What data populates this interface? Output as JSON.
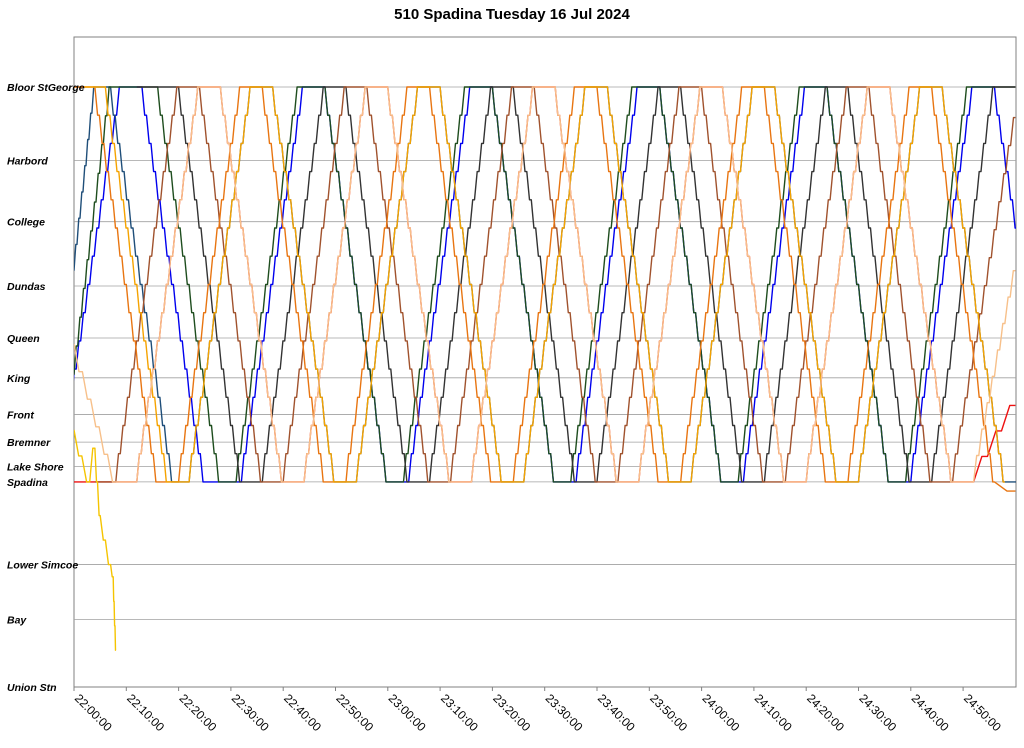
{
  "chart_data": {
    "type": "line",
    "title": "510 Spadina Tuesday 16 Jul 2024",
    "xlabel": "",
    "ylabel": "",
    "x_range": [
      "22:00:00",
      "25:00:00"
    ],
    "x_ticks": [
      "22:00:00",
      "22:10:00",
      "22:20:00",
      "22:30:00",
      "22:40:00",
      "22:50:00",
      "23:00:00",
      "23:10:00",
      "23:20:00",
      "23:30:00",
      "23:40:00",
      "23:50:00",
      "24:00:00",
      "24:10:00",
      "24:20:00",
      "24:30:00",
      "24:40:00",
      "24:50:00"
    ],
    "stops": [
      {
        "name": "Bloor StGeorge",
        "pos": 0.0
      },
      {
        "name": "Harbord",
        "pos": 1.2
      },
      {
        "name": "College",
        "pos": 2.2
      },
      {
        "name": "Dundas",
        "pos": 3.25
      },
      {
        "name": "Queen",
        "pos": 4.1
      },
      {
        "name": "King",
        "pos": 4.75
      },
      {
        "name": "Front",
        "pos": 5.35
      },
      {
        "name": "Bremner",
        "pos": 5.8
      },
      {
        "name": "Lake Shore",
        "pos": 6.2
      },
      {
        "name": "Spadina",
        "pos": 6.45
      },
      {
        "name": "Lower Simcoe",
        "pos": 7.8
      },
      {
        "name": "Bay",
        "pos": 8.7
      },
      {
        "name": "Union Stn",
        "pos": 9.8
      }
    ],
    "y_range": [
      -0.3,
      9.8
    ],
    "grid": true,
    "legend": "none",
    "series": [
      {
        "color": "#0000ee",
        "points": [
          [
            -1,
            6.45
          ],
          [
            -3,
            6.45
          ],
          [
            9,
            0
          ],
          [
            13,
            0
          ],
          [
            25,
            6.45
          ],
          [
            32,
            6.45
          ],
          [
            44,
            0
          ],
          [
            48,
            0
          ],
          [
            60,
            6.45
          ],
          [
            64,
            6.45
          ],
          [
            76,
            0
          ],
          [
            80,
            0
          ],
          [
            92,
            6.45
          ],
          [
            96,
            6.45
          ],
          [
            108,
            0
          ],
          [
            112,
            0
          ],
          [
            124,
            6.45
          ],
          [
            128,
            6.45
          ],
          [
            140,
            0
          ],
          [
            144,
            0
          ],
          [
            156,
            6.45
          ],
          [
            160,
            6.45
          ],
          [
            172,
            0
          ],
          [
            176,
            0
          ],
          [
            188,
            6.45
          ]
        ]
      },
      {
        "color": "#1f4e79",
        "points": [
          [
            0,
            3.0
          ],
          [
            4,
            0
          ],
          [
            7,
            0
          ],
          [
            19,
            6.45
          ],
          [
            22,
            6.45
          ],
          [
            34,
            0
          ],
          [
            38,
            0
          ],
          [
            50,
            6.45
          ],
          [
            54,
            6.45
          ],
          [
            66,
            0
          ],
          [
            70,
            0
          ],
          [
            82,
            6.45
          ],
          [
            86,
            6.45
          ],
          [
            98,
            0
          ],
          [
            102,
            0
          ],
          [
            114,
            6.45
          ],
          [
            118,
            6.45
          ],
          [
            130,
            0
          ],
          [
            134,
            0
          ],
          [
            146,
            6.45
          ],
          [
            150,
            6.45
          ],
          [
            162,
            0
          ],
          [
            166,
            0
          ],
          [
            178,
            6.45
          ],
          [
            182,
            6.45
          ],
          [
            185,
            3.2
          ]
        ]
      },
      {
        "color": "#1e4d1e",
        "points": [
          [
            0,
            4.7
          ],
          [
            7,
            0
          ],
          [
            16,
            0
          ],
          [
            28,
            6.45
          ],
          [
            31,
            6.45
          ],
          [
            43,
            0
          ],
          [
            48,
            0
          ],
          [
            60,
            6.45
          ],
          [
            63,
            6.45
          ],
          [
            75,
            0
          ],
          [
            80,
            0
          ],
          [
            92,
            6.45
          ],
          [
            95,
            6.45
          ],
          [
            107,
            0
          ],
          [
            112,
            0
          ],
          [
            124,
            6.45
          ],
          [
            127,
            6.45
          ],
          [
            139,
            0
          ],
          [
            144,
            0
          ],
          [
            156,
            6.45
          ],
          [
            159,
            6.45
          ],
          [
            171,
            0
          ],
          [
            180,
            0
          ]
        ]
      },
      {
        "color": "#333333",
        "points": [
          [
            12,
            0
          ],
          [
            20,
            0
          ],
          [
            32,
            6.45
          ],
          [
            36,
            6.45
          ],
          [
            48,
            0
          ],
          [
            52,
            0
          ],
          [
            64,
            6.45
          ],
          [
            68,
            6.45
          ],
          [
            80,
            0
          ],
          [
            84,
            0
          ],
          [
            96,
            6.45
          ],
          [
            100,
            6.45
          ],
          [
            112,
            0
          ],
          [
            116,
            0
          ],
          [
            128,
            6.45
          ],
          [
            132,
            6.45
          ],
          [
            144,
            0
          ],
          [
            148,
            0
          ],
          [
            160,
            6.45
          ],
          [
            164,
            6.45
          ],
          [
            176,
            0
          ],
          [
            180,
            0
          ]
        ]
      },
      {
        "color": "#ee1111",
        "points": [
          [
            0,
            6.45
          ],
          [
            12,
            6.45
          ],
          [
            24,
            0
          ],
          [
            28,
            0
          ],
          [
            40,
            6.45
          ],
          [
            44,
            6.45
          ],
          [
            56,
            0
          ],
          [
            60,
            0
          ],
          [
            72,
            6.45
          ],
          [
            76,
            6.45
          ],
          [
            88,
            0
          ],
          [
            92,
            0
          ],
          [
            104,
            6.45
          ],
          [
            108,
            6.45
          ],
          [
            120,
            0
          ],
          [
            124,
            0
          ],
          [
            136,
            6.45
          ],
          [
            140,
            6.45
          ],
          [
            152,
            0
          ],
          [
            156,
            0
          ],
          [
            168,
            6.45
          ],
          [
            172,
            6.45
          ],
          [
            180,
            5.2
          ]
        ]
      },
      {
        "color": "#a0522d",
        "points": [
          [
            4,
            6.45
          ],
          [
            8,
            6.45
          ],
          [
            20,
            0
          ],
          [
            24,
            0
          ],
          [
            36,
            6.45
          ],
          [
            40,
            6.45
          ],
          [
            52,
            0
          ],
          [
            56,
            0
          ],
          [
            68,
            6.45
          ],
          [
            72,
            6.45
          ],
          [
            84,
            0
          ],
          [
            88,
            0
          ],
          [
            100,
            6.45
          ],
          [
            104,
            6.45
          ],
          [
            116,
            0
          ],
          [
            120,
            0
          ],
          [
            132,
            6.45
          ],
          [
            136,
            6.45
          ],
          [
            148,
            0
          ],
          [
            152,
            0
          ],
          [
            164,
            6.45
          ],
          [
            168,
            6.45
          ],
          [
            180,
            0.5
          ]
        ]
      },
      {
        "color": "#e87511",
        "points": [
          [
            0,
            0
          ],
          [
            4,
            0
          ],
          [
            16,
            6.45
          ],
          [
            20,
            6.45
          ],
          [
            32,
            0
          ],
          [
            36,
            0
          ],
          [
            48,
            6.45
          ],
          [
            52,
            6.45
          ],
          [
            64,
            0
          ],
          [
            68,
            0
          ],
          [
            80,
            6.45
          ],
          [
            84,
            6.45
          ],
          [
            96,
            0
          ],
          [
            100,
            0
          ],
          [
            112,
            6.45
          ],
          [
            116,
            6.45
          ],
          [
            128,
            0
          ],
          [
            132,
            0
          ],
          [
            144,
            6.45
          ],
          [
            148,
            6.45
          ],
          [
            160,
            0
          ],
          [
            164,
            0
          ],
          [
            176,
            6.45
          ],
          [
            180,
            6.6
          ]
        ]
      },
      {
        "color": "#f5a300",
        "points": [
          [
            2,
            0
          ],
          [
            6,
            0
          ],
          [
            18,
            6.45
          ],
          [
            22,
            6.45
          ],
          [
            34,
            0
          ],
          [
            38,
            0
          ],
          [
            50,
            6.45
          ],
          [
            54,
            6.45
          ],
          [
            66,
            0
          ],
          [
            70,
            0
          ],
          [
            82,
            6.45
          ],
          [
            86,
            6.45
          ],
          [
            98,
            0
          ],
          [
            102,
            0
          ],
          [
            114,
            6.45
          ],
          [
            118,
            6.45
          ],
          [
            130,
            0
          ],
          [
            134,
            0
          ],
          [
            146,
            6.45
          ],
          [
            150,
            6.45
          ],
          [
            162,
            0
          ],
          [
            166,
            0
          ],
          [
            178,
            6.45
          ]
        ]
      },
      {
        "color": "#f7c08a",
        "points": [
          [
            0,
            4.2
          ],
          [
            8,
            6.45
          ],
          [
            12,
            6.45
          ],
          [
            24,
            0
          ],
          [
            28,
            0
          ],
          [
            40,
            6.45
          ],
          [
            44,
            6.45
          ],
          [
            56,
            0
          ],
          [
            60,
            0
          ],
          [
            72,
            6.45
          ],
          [
            76,
            6.45
          ],
          [
            88,
            0
          ],
          [
            92,
            0
          ],
          [
            104,
            6.45
          ],
          [
            108,
            6.45
          ],
          [
            120,
            0
          ],
          [
            124,
            0
          ],
          [
            136,
            6.45
          ],
          [
            140,
            6.45
          ],
          [
            152,
            0
          ],
          [
            156,
            0
          ],
          [
            168,
            6.45
          ],
          [
            172,
            6.45
          ],
          [
            180,
            3.0
          ]
        ]
      },
      {
        "color": "#f5c400",
        "points": [
          [
            0,
            5.6
          ],
          [
            3,
            6.45
          ],
          [
            4,
            5.9
          ],
          [
            5,
            7.0
          ],
          [
            7,
            7.8
          ],
          [
            7.5,
            8.0
          ],
          [
            8,
            9.2
          ]
        ]
      }
    ]
  }
}
